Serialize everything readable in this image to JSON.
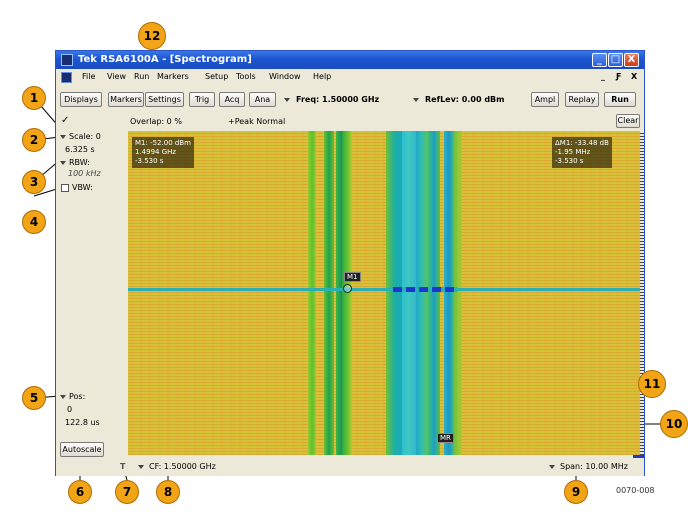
{
  "window": {
    "title": "Tek RSA6100A - [Spectrogram]",
    "controls": [
      "_",
      "□",
      "X"
    ]
  },
  "menu": {
    "items": [
      "File",
      "View",
      "Run",
      "Markers",
      "Setup",
      "Tools",
      "Window",
      "Help"
    ],
    "right_controls": [
      "_",
      "Ƒ",
      "X"
    ]
  },
  "toolbar": {
    "buttons": [
      "Displays",
      "Markers",
      "Settings",
      "Trig",
      "Acq",
      "Ana"
    ],
    "freq": "Freq: 1.50000 GHz",
    "reflev": "RefLev: 0.00 dBm",
    "ampl": "Ampl",
    "replay": "Replay",
    "run": "Run"
  },
  "left_panel": {
    "check": "✓",
    "scale_label": "Scale: 0",
    "scale_value": "6.325 s",
    "rbw_label": "RBW:",
    "rbw_value": "100 kHz",
    "vbw_label": "VBW:",
    "pos_label": "Pos:",
    "pos_value": "0",
    "pos_time": "122.8 us",
    "autoscale": "Autoscale"
  },
  "status": {
    "overlap": "Overlap: 0 %",
    "trace_mode": "+Peak Normal",
    "clear": "Clear"
  },
  "plot": {
    "marker_m1_lines": [
      "M1: -52.00 dBm",
      "1.4994 GHz",
      "-3.530 s"
    ],
    "marker_delta_lines": [
      "ΔM1: -33.48 dB",
      "-1.95 MHz",
      "-3.530 s"
    ],
    "m1_flag": "M1",
    "mr_flag": "MR"
  },
  "bottom": {
    "t_label": "T",
    "cf": "CF: 1.50000 GHz",
    "span": "Span: 10.00 MHz"
  },
  "callouts": [
    "1",
    "2",
    "3",
    "4",
    "5",
    "6",
    "7",
    "8",
    "9",
    "10",
    "11",
    "12"
  ],
  "figure_id": "0070-008",
  "colors": {
    "titlebar": "#1c55d0",
    "callout": "#f2a417",
    "spectrogram_background": "#d6c23a",
    "band_green": "#3cb83c",
    "band_cyan": "#2ab0b0"
  }
}
